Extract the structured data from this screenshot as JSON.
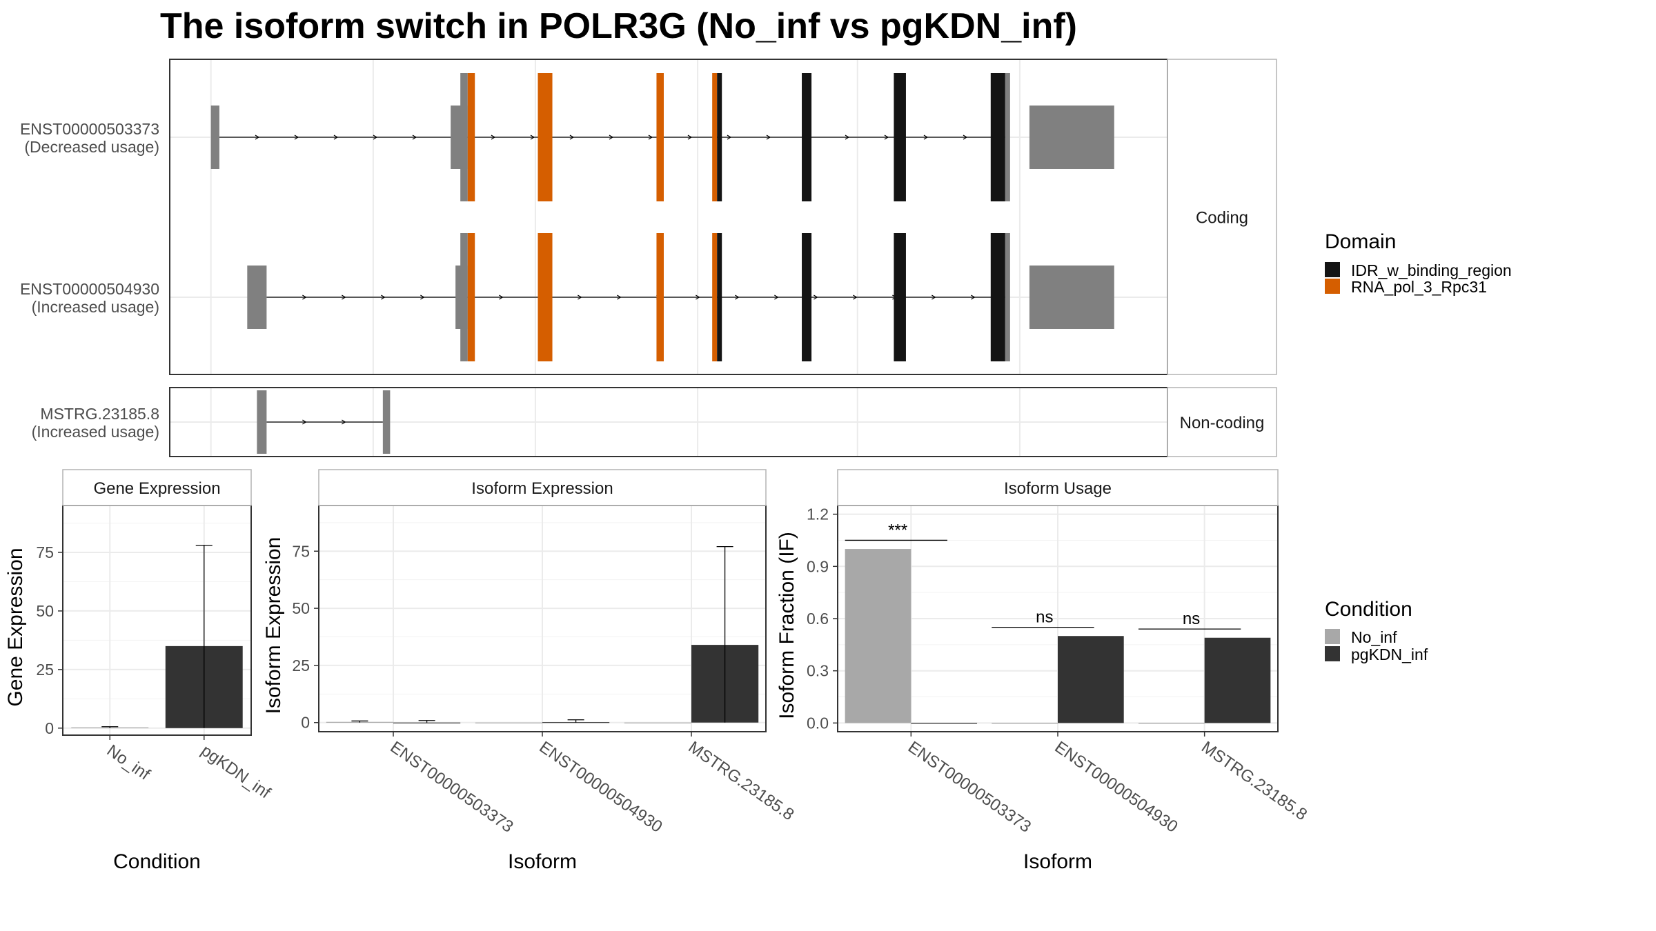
{
  "title": "The isoform switch in POLR3G (No_inf vs pgKDN_inf)",
  "colors": {
    "utr": "#808080",
    "IDR_w_binding_region": "#141414",
    "RNA_pol_3_Rpc31": "#D55E00",
    "No_inf": "#A8A8A8",
    "pgKDN_inf": "#333333",
    "panel_border": "#333333",
    "strip_border": "#b3b3b3",
    "grid": "#ebebeb"
  },
  "structure": {
    "panels": [
      {
        "label": "Coding",
        "transcripts": [
          {
            "id": "ENST00000503373",
            "usage": "(Decreased usage)",
            "utr_blocks": [
              [
                1,
                4.5
              ],
              [
                100,
                107
              ],
              [
                339,
                374
              ]
            ],
            "domain_blocks": [
              {
                "domain": "RNA_pol_3_Rpc31",
                "range": [
                  107,
                  110
                ]
              },
              {
                "domain": "RNA_pol_3_Rpc31",
                "range": [
                  136,
                  142
                ]
              },
              {
                "domain": "RNA_pol_3_Rpc31",
                "range": [
                  185,
                  188
                ]
              },
              {
                "domain": "RNA_pol_3_Rpc31",
                "range": [
                  208,
                  210
                ]
              },
              {
                "domain": "IDR_w_binding_region",
                "range": [
                  210,
                  212
                ]
              },
              {
                "domain": "IDR_w_binding_region",
                "range": [
                  245,
                  249
                ]
              },
              {
                "domain": "IDR_w_binding_region",
                "range": [
                  283,
                  288
                ]
              },
              {
                "domain": "IDR_w_binding_region",
                "range": [
                  323,
                  329
                ]
              }
            ],
            "intron_span": [
              4.5,
              329
            ]
          },
          {
            "id": "ENST00000504930",
            "usage": "(Increased usage)",
            "utr_blocks": [
              [
                16,
                24
              ],
              [
                102,
                107
              ],
              [
                339,
                374
              ]
            ],
            "domain_blocks": [
              {
                "domain": "RNA_pol_3_Rpc31",
                "range": [
                  107,
                  110
                ]
              },
              {
                "domain": "RNA_pol_3_Rpc31",
                "range": [
                  136,
                  142
                ]
              },
              {
                "domain": "RNA_pol_3_Rpc31",
                "range": [
                  185,
                  188
                ]
              },
              {
                "domain": "RNA_pol_3_Rpc31",
                "range": [
                  208,
                  210
                ]
              },
              {
                "domain": "IDR_w_binding_region",
                "range": [
                  210,
                  212
                ]
              },
              {
                "domain": "IDR_w_binding_region",
                "range": [
                  245,
                  249
                ]
              },
              {
                "domain": "IDR_w_binding_region",
                "range": [
                  283,
                  288
                ]
              },
              {
                "domain": "IDR_w_binding_region",
                "range": [
                  323,
                  329
                ]
              }
            ],
            "intron_span": [
              24,
              329
            ]
          }
        ]
      },
      {
        "label": "Non-coding",
        "transcripts": [
          {
            "id": "MSTRG.23185.8",
            "usage": "(Increased usage)",
            "utr_blocks": [
              [
                20,
                24
              ],
              [
                72,
                75
              ]
            ],
            "domain_blocks": [],
            "intron_span": [
              24,
              72
            ]
          }
        ]
      }
    ],
    "legend": {
      "title": "Domain",
      "items": [
        "IDR_w_binding_region",
        "RNA_pol_3_Rpc31"
      ]
    }
  },
  "chart_data": [
    {
      "type": "bar",
      "title": "Gene Expression",
      "xlabel": "Condition",
      "ylabel": "Gene Expression",
      "categories": [
        "No_inf",
        "pgKDN_inf"
      ],
      "values": [
        0.3,
        35
      ],
      "error_high": [
        0.6,
        78
      ],
      "error_low": [
        0,
        0
      ],
      "ylim": [
        -3,
        95
      ],
      "yticks": [
        0,
        25,
        50,
        75
      ]
    },
    {
      "type": "bar",
      "title": "Isoform Expression",
      "xlabel": "Isoform",
      "ylabel": "Isoform Expression",
      "categories": [
        "ENST00000503373",
        "ENST00000504930",
        "MSTRG.23185.8"
      ],
      "series": [
        {
          "name": "No_inf",
          "values": [
            0.3,
            0,
            0
          ]
        },
        {
          "name": "pgKDN_inf",
          "values": [
            0,
            0.2,
            34
          ]
        }
      ],
      "error_high": {
        "No_inf": [
          0.7,
          0,
          0
        ],
        "pgKDN_inf": [
          0.9,
          1.2,
          77
        ]
      },
      "ylim": [
        -4,
        95
      ],
      "yticks": [
        0,
        25,
        50,
        75
      ]
    },
    {
      "type": "bar",
      "title": "Isoform Usage",
      "xlabel": "Isoform",
      "ylabel": "Isoform Fraction (IF)",
      "categories": [
        "ENST00000503373",
        "ENST00000504930",
        "MSTRG.23185.8"
      ],
      "series": [
        {
          "name": "No_inf",
          "values": [
            1.0,
            0,
            0
          ]
        },
        {
          "name": "pgKDN_inf",
          "values": [
            0,
            0.5,
            0.49
          ]
        }
      ],
      "significance": [
        "***",
        "ns",
        "ns"
      ],
      "significance_y": [
        1.05,
        0.55,
        0.54
      ],
      "ylim": [
        -0.05,
        1.25
      ],
      "yticks": [
        0.0,
        0.3,
        0.6,
        0.9,
        1.2
      ],
      "ytick_labels": [
        "0.0",
        "0.3",
        "0.6",
        "0.9",
        "1.2"
      ]
    }
  ],
  "condition_legend": {
    "title": "Condition",
    "items": [
      "No_inf",
      "pgKDN_inf"
    ]
  }
}
